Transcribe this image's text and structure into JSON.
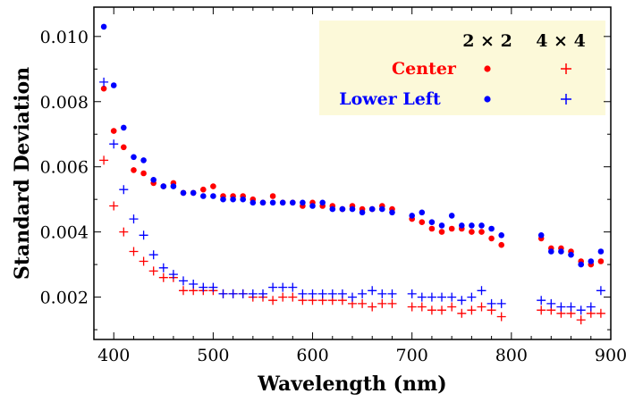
{
  "chart_data": {
    "type": "scatter",
    "title": "",
    "xlabel": "Wavelength (nm)",
    "ylabel": "Standard Deviation",
    "xlim": [
      380,
      900
    ],
    "ylim": [
      0.0007,
      0.0109
    ],
    "xticks": [
      400,
      500,
      600,
      700,
      800,
      900
    ],
    "yticks": [
      0.002,
      0.004,
      0.006,
      0.008,
      0.01
    ],
    "ytick_labels": [
      "0.002",
      "0.004",
      "0.006",
      "0.008",
      "0.010"
    ],
    "grid": false,
    "legend": {
      "placement": "top-right",
      "background": "#fcf9d9",
      "headers": [
        "2 × 2",
        "4 × 4"
      ],
      "rows": [
        {
          "label": "Center",
          "color": "#ff0000"
        },
        {
          "label": "Lower Left",
          "color": "#0000ff"
        }
      ]
    },
    "series": [
      {
        "name": "Center 2×2",
        "marker": "dot",
        "color": "#ff0000",
        "x": [
          390,
          400,
          410,
          420,
          430,
          440,
          450,
          460,
          470,
          480,
          490,
          500,
          510,
          520,
          530,
          540,
          550,
          560,
          570,
          580,
          590,
          600,
          610,
          620,
          630,
          640,
          650,
          660,
          670,
          680,
          700,
          710,
          720,
          730,
          740,
          750,
          760,
          770,
          780,
          790,
          830,
          840,
          850,
          860,
          870,
          880,
          890
        ],
        "y": [
          0.0084,
          0.0071,
          0.0066,
          0.0059,
          0.0058,
          0.0055,
          0.0054,
          0.0055,
          0.0052,
          0.0052,
          0.0053,
          0.0054,
          0.0051,
          0.0051,
          0.0051,
          0.005,
          0.0049,
          0.0051,
          0.0049,
          0.0049,
          0.0048,
          0.0049,
          0.0048,
          0.0048,
          0.0047,
          0.0048,
          0.0047,
          0.0047,
          0.0048,
          0.0047,
          0.0044,
          0.0043,
          0.0041,
          0.004,
          0.0041,
          0.0041,
          0.004,
          0.004,
          0.0038,
          0.0036,
          0.0038,
          0.0035,
          0.0035,
          0.0034,
          0.0031,
          0.003,
          0.0031
        ]
      },
      {
        "name": "Lower Left 2×2",
        "marker": "dot",
        "color": "#0000ff",
        "x": [
          390,
          400,
          410,
          420,
          430,
          440,
          450,
          460,
          470,
          480,
          490,
          500,
          510,
          520,
          530,
          540,
          550,
          560,
          570,
          580,
          590,
          600,
          610,
          620,
          630,
          640,
          650,
          660,
          670,
          680,
          700,
          710,
          720,
          730,
          740,
          750,
          760,
          770,
          780,
          790,
          830,
          840,
          850,
          860,
          870,
          880,
          890
        ],
        "y": [
          0.0103,
          0.0085,
          0.0072,
          0.0063,
          0.0062,
          0.0056,
          0.0054,
          0.0054,
          0.0052,
          0.0052,
          0.0051,
          0.0051,
          0.005,
          0.005,
          0.005,
          0.0049,
          0.0049,
          0.0049,
          0.0049,
          0.0049,
          0.0049,
          0.0048,
          0.0049,
          0.0047,
          0.0047,
          0.0047,
          0.0046,
          0.0047,
          0.0047,
          0.0046,
          0.0045,
          0.0046,
          0.0043,
          0.0042,
          0.0045,
          0.0042,
          0.0042,
          0.0042,
          0.0041,
          0.0039,
          0.0039,
          0.0034,
          0.0034,
          0.0033,
          0.003,
          0.0031,
          0.0034
        ]
      },
      {
        "name": "Center 4×4",
        "marker": "plus",
        "color": "#ff0000",
        "x": [
          390,
          400,
          410,
          420,
          430,
          440,
          450,
          460,
          470,
          480,
          490,
          500,
          510,
          520,
          530,
          540,
          550,
          560,
          570,
          580,
          590,
          600,
          610,
          620,
          630,
          640,
          650,
          660,
          670,
          680,
          700,
          710,
          720,
          730,
          740,
          750,
          760,
          770,
          780,
          790,
          830,
          840,
          850,
          860,
          870,
          880,
          890
        ],
        "y": [
          0.0062,
          0.0048,
          0.004,
          0.0034,
          0.0031,
          0.0028,
          0.0026,
          0.0026,
          0.0022,
          0.0022,
          0.0022,
          0.0022,
          0.0021,
          0.0021,
          0.0021,
          0.002,
          0.002,
          0.0019,
          0.002,
          0.002,
          0.0019,
          0.0019,
          0.0019,
          0.0019,
          0.0019,
          0.0018,
          0.0018,
          0.0017,
          0.0018,
          0.0018,
          0.0017,
          0.0017,
          0.0016,
          0.0016,
          0.0017,
          0.0015,
          0.0016,
          0.0017,
          0.0016,
          0.0014,
          0.0016,
          0.0016,
          0.0015,
          0.0015,
          0.0013,
          0.0015,
          0.0015
        ]
      },
      {
        "name": "Lower Left 4×4",
        "marker": "plus",
        "color": "#0000ff",
        "x": [
          390,
          400,
          410,
          420,
          430,
          440,
          450,
          460,
          470,
          480,
          490,
          500,
          510,
          520,
          530,
          540,
          550,
          560,
          570,
          580,
          590,
          600,
          610,
          620,
          630,
          640,
          650,
          660,
          670,
          680,
          700,
          710,
          720,
          730,
          740,
          750,
          760,
          770,
          780,
          790,
          830,
          840,
          850,
          860,
          870,
          880,
          890
        ],
        "y": [
          0.0086,
          0.0067,
          0.0053,
          0.0044,
          0.0039,
          0.0033,
          0.0029,
          0.0027,
          0.0025,
          0.0024,
          0.0023,
          0.0023,
          0.0021,
          0.0021,
          0.0021,
          0.0021,
          0.0021,
          0.0023,
          0.0023,
          0.0023,
          0.0021,
          0.0021,
          0.0021,
          0.0021,
          0.0021,
          0.002,
          0.0021,
          0.0022,
          0.0021,
          0.0021,
          0.0021,
          0.002,
          0.002,
          0.002,
          0.002,
          0.0019,
          0.002,
          0.0022,
          0.0018,
          0.0018,
          0.0019,
          0.0018,
          0.0017,
          0.0017,
          0.0016,
          0.0017,
          0.0022
        ]
      }
    ]
  }
}
